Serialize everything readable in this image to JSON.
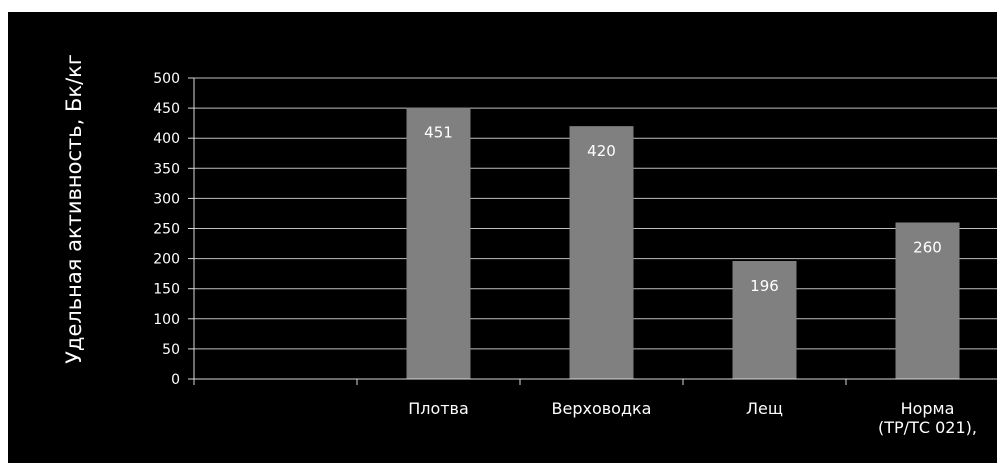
{
  "chart_data": {
    "type": "bar",
    "title": "",
    "xlabel": "",
    "ylabel": "Удельная активность,  Бк/кг",
    "categories": [
      "",
      "Плотва",
      "Верховодка",
      "Лещ",
      "Норма (ТР/ТС  021),"
    ],
    "category_lines": [
      [
        ""
      ],
      [
        "Плотва"
      ],
      [
        "Верховодка"
      ],
      [
        "Лещ"
      ],
      [
        "Норма",
        "(ТР/ТС  021),"
      ]
    ],
    "values": [
      null,
      451,
      420,
      196,
      260
    ],
    "data_labels": [
      "",
      "451",
      "420",
      "196",
      "260"
    ],
    "ylim": [
      0,
      500
    ],
    "yticks": [
      0,
      50,
      100,
      150,
      200,
      250,
      300,
      350,
      400,
      450,
      500
    ],
    "grid": true,
    "legend": "none",
    "colors": {
      "background": "#000000",
      "bar": "#808080",
      "grid": "#bfbfbf",
      "axis": "#d9d9d9",
      "text": "#ffffff"
    }
  }
}
